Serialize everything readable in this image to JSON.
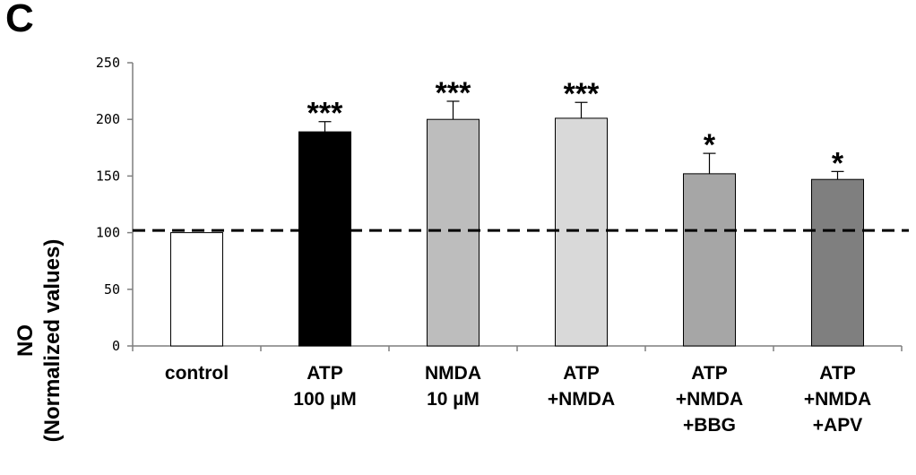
{
  "panel_letter": "C",
  "chart_data": {
    "type": "bar",
    "title": "",
    "ylabel_lines": [
      "NO",
      "(Normalized values)"
    ],
    "ylim": [
      0,
      250
    ],
    "yticks": [
      0,
      50,
      100,
      150,
      200,
      250
    ],
    "categories": [
      [
        "control"
      ],
      [
        "ATP",
        "100 µM"
      ],
      [
        "NMDA",
        "10 µM"
      ],
      [
        "ATP",
        "+NMDA"
      ],
      [
        "ATP",
        "+NMDA",
        "+BBG"
      ],
      [
        "ATP",
        "+NMDA",
        "+APV"
      ]
    ],
    "values": [
      100,
      189,
      200,
      201,
      152,
      147
    ],
    "errors": [
      0,
      9,
      16,
      14,
      18,
      7
    ],
    "significance": [
      "",
      "***",
      "***",
      "***",
      "*",
      "*"
    ],
    "bar_colors": [
      "#ffffff",
      "#000000",
      "#bdbdbd",
      "#d9d9d9",
      "#a6a6a6",
      "#7f7f7f"
    ],
    "reference_line": 102,
    "grid": false,
    "legend": "none"
  }
}
